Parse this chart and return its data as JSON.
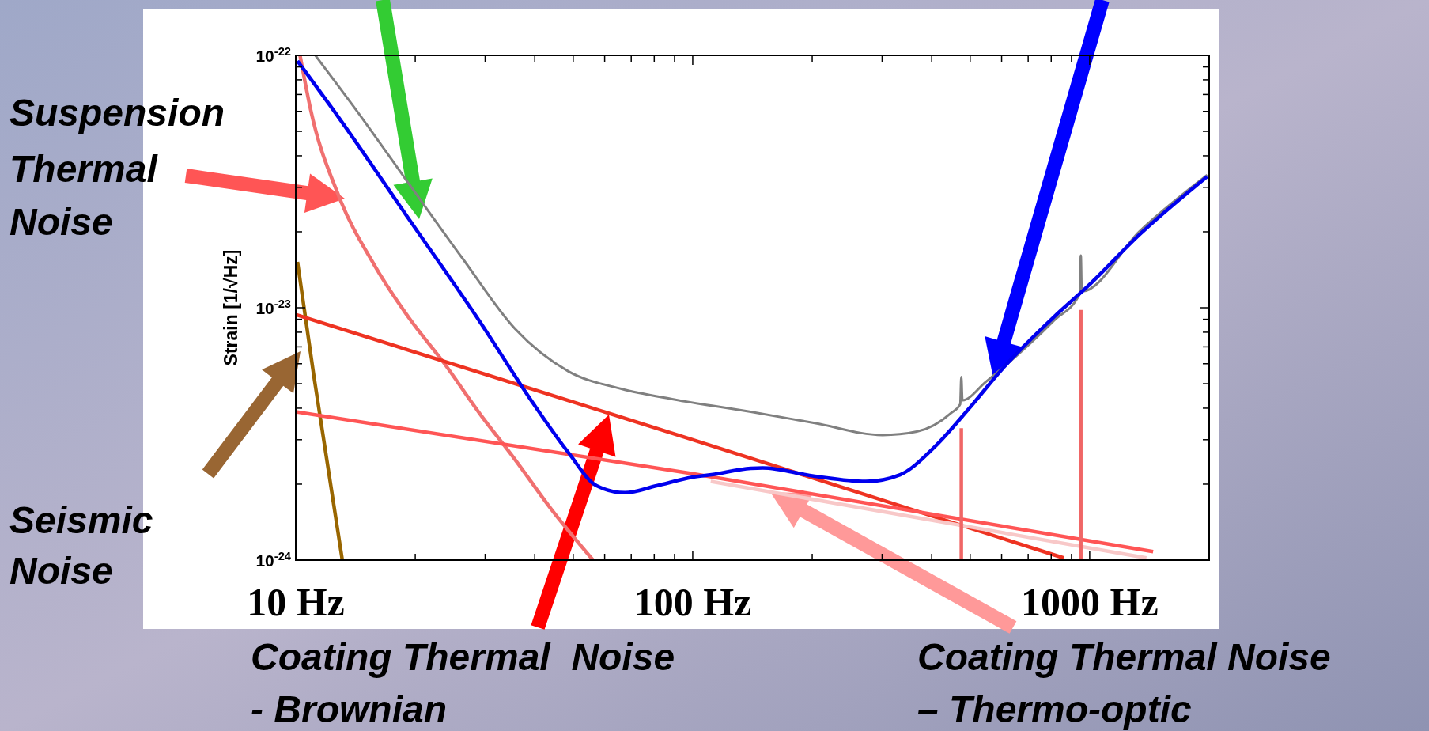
{
  "chart_data": {
    "type": "line",
    "ylabel": "Strain [1/√Hz]",
    "log": "xy",
    "grid": false,
    "xlim": [
      10,
      2000
    ],
    "ylim": [
      1e-24,
      1e-22
    ],
    "xticks": [
      {
        "value": 10,
        "label": "10 Hz"
      },
      {
        "value": 20,
        "label": null
      },
      {
        "value": 30,
        "label": null
      },
      {
        "value": 40,
        "label": null
      },
      {
        "value": 50,
        "label": null
      },
      {
        "value": 60,
        "label": null
      },
      {
        "value": 70,
        "label": null
      },
      {
        "value": 80,
        "label": null
      },
      {
        "value": 90,
        "label": null
      },
      {
        "value": 100,
        "label": "100 Hz"
      },
      {
        "value": 200,
        "label": null
      },
      {
        "value": 300,
        "label": null
      },
      {
        "value": 400,
        "label": null
      },
      {
        "value": 500,
        "label": null
      },
      {
        "value": 600,
        "label": null
      },
      {
        "value": 700,
        "label": null
      },
      {
        "value": 800,
        "label": null
      },
      {
        "value": 900,
        "label": null
      },
      {
        "value": 1000,
        "label": "1000 Hz"
      },
      {
        "value": 2000,
        "label": null
      }
    ],
    "yticks": [
      {
        "value": 1e-22,
        "label": "10$^{-22}$"
      },
      {
        "value": 9e-23,
        "label": null
      },
      {
        "value": 8e-23,
        "label": null
      },
      {
        "value": 7e-23,
        "label": null
      },
      {
        "value": 6e-23,
        "label": null
      },
      {
        "value": 5e-23,
        "label": null
      },
      {
        "value": 4e-23,
        "label": null
      },
      {
        "value": 3e-23,
        "label": null
      },
      {
        "value": 2e-23,
        "label": null
      },
      {
        "value": 1e-23,
        "label": "10$^{-23}$"
      },
      {
        "value": 9e-24,
        "label": null
      },
      {
        "value": 8e-24,
        "label": null
      },
      {
        "value": 7e-24,
        "label": null
      },
      {
        "value": 6e-24,
        "label": null
      },
      {
        "value": 5e-24,
        "label": null
      },
      {
        "value": 4e-24,
        "label": null
      },
      {
        "value": 3e-24,
        "label": null
      },
      {
        "value": 2e-24,
        "label": null
      },
      {
        "value": 1e-24,
        "label": "10$^{-24}$"
      }
    ],
    "series": [
      {
        "color": "#996600",
        "x": [
          10.1,
          11.1,
          13.1
        ],
        "values": [
          1.52e-23,
          5.4e-24,
          1e-24
        ]
      },
      {
        "color": "#f07070",
        "x": [
          10.25,
          10.9,
          12.8,
          15.8,
          19.3,
          23.7,
          29.1,
          35.7,
          43.9,
          56.1
        ],
        "values": [
          1e-22,
          6.1e-23,
          2.8e-23,
          1.47e-23,
          9.1e-24,
          6e-24,
          3.8e-24,
          2.5e-24,
          1.6e-24,
          1e-24
        ]
      },
      {
        "color": "#ee3322",
        "x": [
          10,
          100,
          860
        ],
        "values": [
          9.4e-24,
          3e-24,
          1.02e-24
        ]
      },
      {
        "color": "#f8c8c8",
        "x": [
          111,
          1390
        ],
        "values": [
          2.05e-24,
          1.02e-24
        ]
      },
      {
        "color": "#ff5555",
        "x": [
          10,
          100,
          1445
        ],
        "values": [
          3.87e-24,
          2.2e-24,
          1.08e-24
        ]
      },
      {
        "color": "#f06666",
        "x": [
          475,
          475
        ],
        "values": [
          1e-24,
          3.33e-24
        ]
      },
      {
        "color": "#f06666",
        "x": [
          950,
          950
        ],
        "values": [
          1e-24,
          9.8e-24
        ]
      },
      {
        "color": "#808080",
        "x": [
          11.2,
          14.2,
          19.3,
          26.3,
          35.7,
          48.6,
          66.1,
          89.9,
          140,
          203,
          301,
          367,
          448,
          472,
          475,
          478,
          547,
          813,
          945,
          950,
          955,
          1336,
          1977
        ],
        "values": [
          1e-22,
          6.07e-23,
          3.09e-23,
          1.57e-23,
          8.24e-24,
          5.6e-24,
          4.77e-24,
          4.33e-24,
          3.87e-24,
          3.49e-24,
          3.13e-24,
          3.23e-24,
          3.83e-24,
          4.15e-24,
          5.32e-24,
          4.3e-24,
          5.08e-24,
          8.9e-24,
          1.14e-23,
          1.61e-23,
          1.16e-23,
          2.01e-23,
          3.36e-23
        ]
      },
      {
        "color": "#0000ee",
        "x": [
          10.1,
          12.8,
          19.3,
          29.1,
          39.6,
          48.6,
          57.3,
          67.5,
          81.1,
          99.6,
          111.6,
          140,
          150,
          203,
          273,
          333,
          406,
          495,
          604,
          813,
          991,
          1336,
          1977
        ],
        "values": [
          9.5e-23,
          5.7e-23,
          2.24e-23,
          8.8e-24,
          4.19e-24,
          2.67e-24,
          1.97e-24,
          1.85e-24,
          1.97e-24,
          2.13e-24,
          2.18e-24,
          2.31e-24,
          2.32e-24,
          2.15e-24,
          2.05e-24,
          2.18e-24,
          2.8e-24,
          3.96e-24,
          5.75e-24,
          9.2e-24,
          1.22e-23,
          1.95e-23,
          3.31e-23
        ]
      }
    ],
    "annotations": [
      "Suspension\nThermal\nNoise",
      "Seismic\nNoise",
      "Coating Thermal  Noise\n- Brownian",
      "Coating Thermal Noise\n– Thermo-optic"
    ]
  }
}
